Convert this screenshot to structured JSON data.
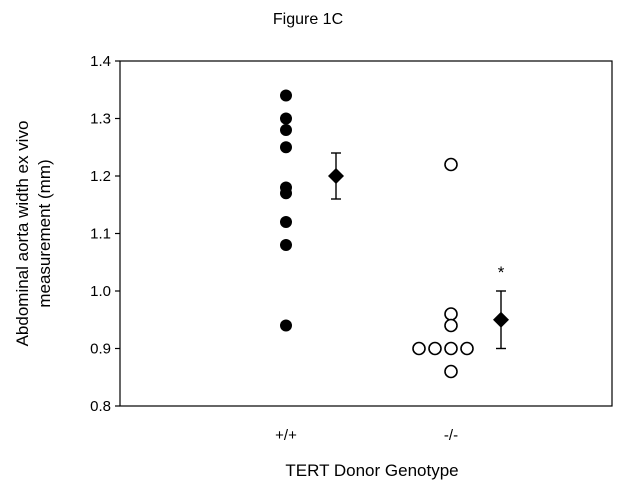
{
  "chart_data": {
    "type": "scatter",
    "title": "Figure 1C",
    "xlabel": "TERT Donor Genotype",
    "ylabel_lines": [
      "Abdominal aorta width ex vivo",
      "measurement (mm)"
    ],
    "categories": [
      "+/+",
      "-/-"
    ],
    "ylim": [
      0.8,
      1.4
    ],
    "yticks": [
      "0.8",
      "0.9",
      "1.0",
      "1.1",
      "1.2",
      "1.3",
      "1.4"
    ],
    "grid": false,
    "series": [
      {
        "category": "+/+",
        "marker": "filled-circle",
        "points": [
          {
            "x": 0,
            "y": 1.34
          },
          {
            "x": 0,
            "y": 1.3
          },
          {
            "x": 0,
            "y": 1.28
          },
          {
            "x": 0,
            "y": 1.25
          },
          {
            "x": 0,
            "y": 1.18
          },
          {
            "x": 0,
            "y": 1.17
          },
          {
            "x": 0,
            "y": 1.12
          },
          {
            "x": 0,
            "y": 1.08
          },
          {
            "x": 0,
            "y": 0.94
          }
        ],
        "mean": 1.2,
        "error_low": 1.16,
        "error_high": 1.24
      },
      {
        "category": "-/-",
        "marker": "open-circle",
        "points": [
          {
            "x": 0,
            "y": 1.22
          },
          {
            "x": 0,
            "y": 0.96
          },
          {
            "x": 0,
            "y": 0.94
          },
          {
            "x": -2,
            "y": 0.9
          },
          {
            "x": -1,
            "y": 0.9
          },
          {
            "x": 0,
            "y": 0.9
          },
          {
            "x": 1,
            "y": 0.9
          },
          {
            "x": 0,
            "y": 0.86
          }
        ],
        "mean": 0.95,
        "error_low": 0.9,
        "error_high": 1.0
      }
    ],
    "annotations": [
      {
        "text": "*",
        "category": "-/-",
        "y": 1.03
      }
    ],
    "colors": {
      "marker": "#000000",
      "axis": "#000000",
      "background": "#ffffff"
    }
  }
}
